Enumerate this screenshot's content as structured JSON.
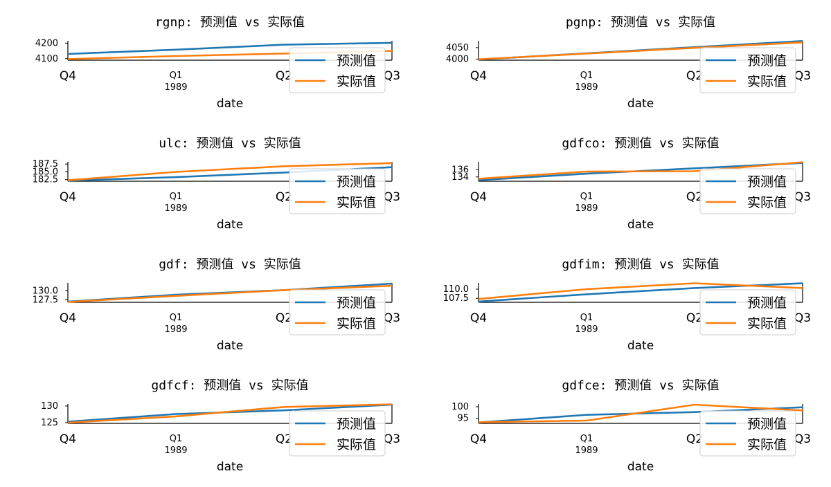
{
  "chart_data": [
    {
      "type": "line",
      "title": "rgnp: 预测值 vs 实际值",
      "xlabel": "date",
      "x": [
        "1988Q4",
        "1989Q1",
        "1989Q2",
        "1989Q3"
      ],
      "xticks": [
        {
          "label": "Q4"
        },
        {
          "label": "Q1",
          "sublabel": "1989"
        },
        {
          "label": "Q2"
        },
        {
          "label": "Q3"
        }
      ],
      "yticks": [
        "4100",
        "4200"
      ],
      "ylim": [
        4090,
        4215
      ],
      "series": [
        {
          "name": "预测值",
          "color": "#1f77b4",
          "values": [
            4130,
            4158,
            4190,
            4202
          ]
        },
        {
          "name": "实际值",
          "color": "#ff7f0e",
          "values": [
            4097,
            4117,
            4133,
            4150
          ]
        }
      ],
      "legend": "lower-right"
    },
    {
      "type": "line",
      "title": "pgnp: 预测值 vs 实际值",
      "xlabel": "date",
      "x": [
        "1988Q4",
        "1989Q1",
        "1989Q2",
        "1989Q3"
      ],
      "xticks": [
        {
          "label": "Q4"
        },
        {
          "label": "Q1",
          "sublabel": "1989"
        },
        {
          "label": "Q2"
        },
        {
          "label": "Q3"
        }
      ],
      "yticks": [
        "4000",
        "4050"
      ],
      "ylim": [
        3995,
        4080
      ],
      "series": [
        {
          "name": "预测值",
          "color": "#1f77b4",
          "values": [
            3998,
            4025,
            4052,
            4079
          ]
        },
        {
          "name": "实际值",
          "color": "#ff7f0e",
          "values": [
            3999,
            4024,
            4049,
            4073
          ]
        }
      ],
      "legend": "lower-right"
    },
    {
      "type": "line",
      "title": "ulc: 预测值 vs 实际值",
      "xlabel": "date",
      "x": [
        "1988Q4",
        "1989Q1",
        "1989Q2",
        "1989Q3"
      ],
      "xticks": [
        {
          "label": "Q4"
        },
        {
          "label": "Q1",
          "sublabel": "1989"
        },
        {
          "label": "Q2"
        },
        {
          "label": "Q3"
        }
      ],
      "yticks": [
        "182.5",
        "185.0",
        "187.5"
      ],
      "ylim": [
        182.0,
        188.2
      ],
      "series": [
        {
          "name": "预测值",
          "color": "#1f77b4",
          "values": [
            182.2,
            183.3,
            184.8,
            186.5
          ]
        },
        {
          "name": "实际值",
          "color": "#ff7f0e",
          "values": [
            182.3,
            185.0,
            186.8,
            187.8
          ]
        }
      ],
      "legend": "lower-right"
    },
    {
      "type": "line",
      "title": "gdfco: 预测值 vs 实际值",
      "xlabel": "date",
      "x": [
        "1988Q4",
        "1989Q1",
        "1989Q2",
        "1989Q3"
      ],
      "xticks": [
        {
          "label": "Q4"
        },
        {
          "label": "Q1",
          "sublabel": "1989"
        },
        {
          "label": "Q2"
        },
        {
          "label": "Q3"
        }
      ],
      "yticks": [
        "134",
        "136"
      ],
      "ylim": [
        132.8,
        138.2
      ],
      "series": [
        {
          "name": "预测值",
          "color": "#1f77b4",
          "values": [
            133.1,
            134.9,
            136.4,
            137.9
          ]
        },
        {
          "name": "实际值",
          "color": "#ff7f0e",
          "values": [
            133.5,
            135.5,
            135.6,
            138.1
          ]
        }
      ],
      "legend": "lower-right"
    },
    {
      "type": "line",
      "title": "gdf: 预测值 vs 实际值",
      "xlabel": "date",
      "x": [
        "1988Q4",
        "1989Q1",
        "1989Q2",
        "1989Q3"
      ],
      "xticks": [
        {
          "label": "Q4"
        },
        {
          "label": "Q1",
          "sublabel": "1989"
        },
        {
          "label": "Q2"
        },
        {
          "label": "Q3"
        }
      ],
      "yticks": [
        "127.5",
        "130.0"
      ],
      "ylim": [
        126.8,
        132.2
      ],
      "series": [
        {
          "name": "预测值",
          "color": "#1f77b4",
          "values": [
            127.0,
            128.9,
            130.2,
            132.0
          ]
        },
        {
          "name": "实际值",
          "color": "#ff7f0e",
          "values": [
            126.9,
            128.6,
            130.2,
            131.4
          ]
        }
      ],
      "legend": "lower-right"
    },
    {
      "type": "line",
      "title": "gdfim: 预测值 vs 实际值",
      "xlabel": "date",
      "x": [
        "1988Q4",
        "1989Q1",
        "1989Q2",
        "1989Q3"
      ],
      "xticks": [
        {
          "label": "Q4"
        },
        {
          "label": "Q1",
          "sublabel": "1989"
        },
        {
          "label": "Q2"
        },
        {
          "label": "Q3"
        }
      ],
      "yticks": [
        "107.5",
        "110.0"
      ],
      "ylim": [
        106.4,
        111.7
      ],
      "series": [
        {
          "name": "预测值",
          "color": "#1f77b4",
          "values": [
            106.6,
            108.6,
            110.3,
            111.6
          ]
        },
        {
          "name": "实际值",
          "color": "#ff7f0e",
          "values": [
            107.3,
            110.0,
            111.6,
            110.3
          ]
        }
      ],
      "legend": "lower-right"
    },
    {
      "type": "line",
      "title": "gdfcf: 预测值 vs 实际值",
      "xlabel": "date",
      "x": [
        "1988Q4",
        "1989Q1",
        "1989Q2",
        "1989Q3"
      ],
      "xticks": [
        {
          "label": "Q4"
        },
        {
          "label": "Q1",
          "sublabel": "1989"
        },
        {
          "label": "Q2"
        },
        {
          "label": "Q3"
        }
      ],
      "yticks": [
        "125",
        "130"
      ],
      "ylim": [
        124.8,
        130.6
      ],
      "series": [
        {
          "name": "预测值",
          "color": "#1f77b4",
          "values": [
            125.3,
            127.6,
            128.7,
            130.4
          ]
        },
        {
          "name": "实际值",
          "color": "#ff7f0e",
          "values": [
            125.0,
            126.9,
            129.7,
            130.5
          ]
        }
      ],
      "legend": "lower-right"
    },
    {
      "type": "line",
      "title": "gdfce: 预测值 vs 实际值",
      "xlabel": "date",
      "x": [
        "1988Q4",
        "1989Q1",
        "1989Q2",
        "1989Q3"
      ],
      "xticks": [
        {
          "label": "Q4"
        },
        {
          "label": "Q1",
          "sublabel": "1989"
        },
        {
          "label": "Q2"
        },
        {
          "label": "Q3"
        }
      ],
      "yticks": [
        "95",
        "100"
      ],
      "ylim": [
        92.8,
        101.2
      ],
      "series": [
        {
          "name": "预测值",
          "color": "#1f77b4",
          "values": [
            93.2,
            96.5,
            97.7,
            99.8
          ]
        },
        {
          "name": "实际值",
          "color": "#ff7f0e",
          "values": [
            93.3,
            94.0,
            100.9,
            98.4
          ]
        }
      ],
      "legend": "lower-right"
    }
  ]
}
